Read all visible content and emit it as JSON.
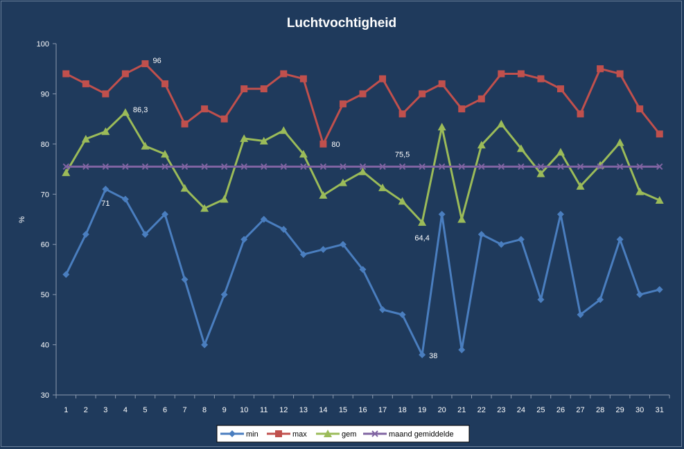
{
  "chart_data": {
    "type": "line",
    "title": "Luchtvochtigheid",
    "xlabel": "",
    "ylabel": "%",
    "ylim": [
      30,
      100
    ],
    "yticks": [
      30,
      40,
      50,
      60,
      70,
      80,
      90,
      100
    ],
    "grid": false,
    "legend_position": "bottom",
    "categories": [
      "1",
      "2",
      "3",
      "4",
      "5",
      "6",
      "7",
      "8",
      "9",
      "10",
      "11",
      "12",
      "13",
      "14",
      "15",
      "16",
      "17",
      "18",
      "19",
      "20",
      "21",
      "22",
      "23",
      "24",
      "25",
      "26",
      "27",
      "28",
      "29",
      "30",
      "31"
    ],
    "series": [
      {
        "name": "min",
        "color": "#4a7ebf",
        "marker": "diamond",
        "values": [
          54,
          62,
          71,
          69,
          62,
          66,
          53,
          40,
          50,
          61,
          65,
          63,
          58,
          59,
          60,
          55,
          47,
          46,
          38,
          66,
          39,
          62,
          60,
          61,
          49,
          66,
          46,
          49,
          61,
          50,
          51
        ]
      },
      {
        "name": "max",
        "color": "#c0504d",
        "marker": "square",
        "values": [
          94,
          92,
          90,
          94,
          96,
          92,
          84,
          87,
          85,
          91,
          91,
          94,
          93,
          80,
          88,
          90,
          93,
          86,
          90,
          92,
          87,
          89,
          94,
          94,
          93,
          91,
          86,
          95,
          94,
          87,
          82
        ]
      },
      {
        "name": "gem",
        "color": "#9bbb59",
        "marker": "triangle",
        "values": [
          74.3,
          81,
          82.5,
          86.3,
          79.6,
          78,
          71.2,
          67.2,
          69,
          81.1,
          80.6,
          82.7,
          78,
          69.8,
          72.3,
          74.5,
          71.3,
          68.6,
          64.4,
          83.4,
          65,
          79.8,
          84,
          79.1,
          74.1,
          78.4,
          71.6,
          75.8,
          80.3,
          70.5,
          68.8
        ]
      },
      {
        "name": "maand gemiddelde",
        "color": "#8064a2",
        "marker": "x",
        "values": [
          75.5,
          75.5,
          75.5,
          75.5,
          75.5,
          75.5,
          75.5,
          75.5,
          75.5,
          75.5,
          75.5,
          75.5,
          75.5,
          75.5,
          75.5,
          75.5,
          75.5,
          75.5,
          75.5,
          75.5,
          75.5,
          75.5,
          75.5,
          75.5,
          75.5,
          75.5,
          75.5,
          75.5,
          75.5,
          75.5,
          75.5
        ]
      }
    ],
    "annotations": [
      {
        "series": "min",
        "index": 2,
        "text": "71"
      },
      {
        "series": "min",
        "index": 18,
        "text": "38"
      },
      {
        "series": "max",
        "index": 4,
        "text": "96"
      },
      {
        "series": "max",
        "index": 13,
        "text": "80"
      },
      {
        "series": "gem",
        "index": 3,
        "text": "86,3"
      },
      {
        "series": "gem",
        "index": 18,
        "text": "64,4"
      },
      {
        "series": "maand gemiddelde",
        "index": 17,
        "text": "75,5"
      }
    ]
  }
}
